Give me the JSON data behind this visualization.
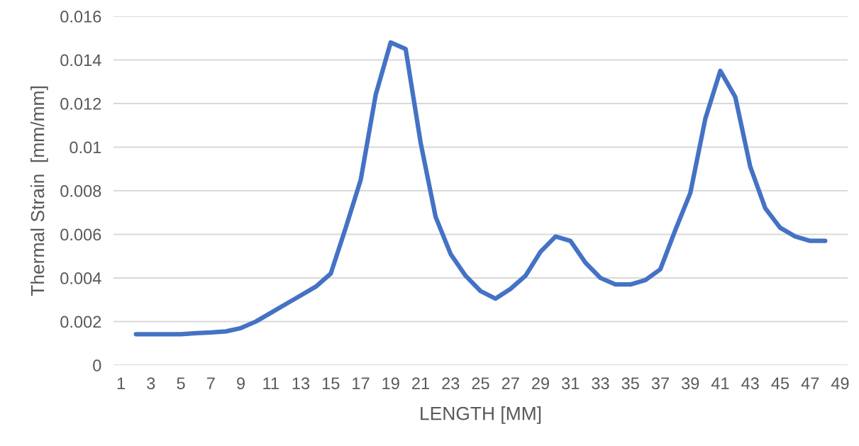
{
  "chart_data": {
    "type": "line",
    "xlabel": "LENGTH [MM]",
    "ylabel": "Thermal Strain  [mm/mm]",
    "categories": [
      "1",
      null,
      "3",
      null,
      "5",
      null,
      "7",
      null,
      "9",
      null,
      "11",
      null,
      "13",
      null,
      "15",
      null,
      "17",
      null,
      "19",
      null,
      "21",
      null,
      "23",
      null,
      "25",
      null,
      "27",
      null,
      "29",
      null,
      "31",
      null,
      "33",
      null,
      "35",
      null,
      "37",
      null,
      "39",
      null,
      "41",
      null,
      "43",
      null,
      "45",
      null,
      "47",
      null,
      "49"
    ],
    "series": [
      {
        "color": "#4472c4",
        "values": [
          null,
          0.00142,
          0.00142,
          0.00142,
          0.00142,
          0.00147,
          0.0015,
          0.00155,
          0.0017,
          0.002,
          0.0024,
          0.0028,
          0.0032,
          0.0036,
          0.0042,
          0.0063,
          0.0085,
          0.0124,
          0.0148,
          0.0145,
          0.0102,
          0.0068,
          0.0051,
          0.0041,
          0.0034,
          0.00305,
          0.0035,
          0.0041,
          0.0052,
          0.0059,
          0.0057,
          0.0047,
          0.004,
          0.0037,
          0.0037,
          0.0039,
          0.0044,
          0.0062,
          0.0079,
          0.0113,
          0.0135,
          0.0123,
          0.0091,
          0.0072,
          0.0063,
          0.0059,
          0.0057,
          0.0057,
          null
        ]
      }
    ],
    "ylim": [
      0,
      0.016
    ],
    "yticks": [
      0,
      0.002,
      0.004,
      0.006,
      0.008,
      0.01,
      0.012,
      0.014,
      0.016
    ],
    "grid": "y",
    "legend": false,
    "marker": "none",
    "line_style": "solid"
  }
}
